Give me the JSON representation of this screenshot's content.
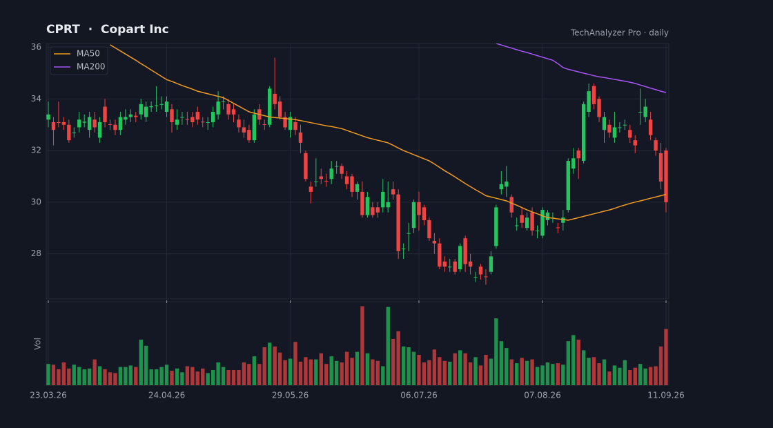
{
  "chart_data": {
    "type": "candlestick",
    "title": "CPRT  ·  Copart Inc",
    "subtitle": "TechAnalyzer Pro · daily",
    "volume_label": "Vol",
    "categories": [
      "23.03.26",
      null,
      null,
      null,
      null,
      null,
      null,
      null,
      null,
      null,
      null,
      null,
      null,
      null,
      null,
      null,
      null,
      null,
      null,
      null,
      null,
      null,
      null,
      "24.04.26",
      null,
      null,
      null,
      null,
      null,
      null,
      null,
      null,
      null,
      null,
      null,
      null,
      null,
      null,
      null,
      null,
      null,
      null,
      null,
      null,
      null,
      null,
      null,
      "29.05.26",
      null,
      null,
      null,
      null,
      null,
      null,
      null,
      null,
      null,
      null,
      null,
      null,
      null,
      null,
      null,
      null,
      null,
      null,
      null,
      null,
      null,
      null,
      null,
      null,
      "06.07.26",
      null,
      null,
      null,
      null,
      null,
      null,
      null,
      null,
      null,
      null,
      null,
      null,
      null,
      null,
      null,
      null,
      null,
      null,
      null,
      null,
      null,
      null,
      null,
      "07.08.26",
      null,
      null,
      null,
      null,
      null,
      null,
      null,
      null,
      null,
      null,
      null,
      null,
      null,
      null,
      null,
      null,
      null,
      null,
      null,
      null,
      null,
      null,
      null,
      "11.09.26"
    ],
    "open": [
      33.2,
      33.1,
      33.1,
      33.1,
      33.0,
      32.68,
      32.9,
      33.08,
      32.8,
      33.2,
      32.5,
      33.7,
      33.02,
      33.0,
      32.8,
      33.2,
      33.3,
      33.35,
      33.4,
      33.3,
      33.68,
      33.72,
      33.78,
      33.5,
      33.6,
      33.0,
      33.28,
      33.22,
      33.3,
      33.5,
      33.12,
      33.08,
      33.1,
      33.4,
      33.88,
      33.8,
      33.6,
      33.2,
      32.9,
      32.8,
      32.4,
      33.6,
      33.02,
      33.0,
      34.2,
      33.9,
      33.3,
      32.8,
      33.1,
      32.7,
      31.9,
      30.6,
      30.78,
      31.0,
      30.82,
      30.9,
      31.38,
      31.4,
      31.0,
      31.0,
      30.4,
      30.4,
      29.5,
      29.8,
      29.8,
      29.8,
      29.8,
      30.5,
      30.3,
      28.18,
      28.78,
      29.0,
      30.0,
      29.8,
      29.3,
      28.5,
      28.4,
      27.7,
      27.48,
      27.7,
      27.4,
      28.6,
      27.7,
      27.08,
      27.5,
      27.12,
      27.3,
      28.3,
      30.5,
      30.6,
      30.2,
      29.08,
      29.5,
      29.0,
      29.6,
      28.88,
      28.7,
      29.3,
      29.38,
      29.02,
      29.2,
      29.7,
      31.3,
      32.0,
      31.6,
      33.5,
      34.5,
      34.0,
      32.8,
      33.0,
      32.5,
      32.88,
      32.98,
      32.8,
      32.4,
      33.48,
      33.3,
      33.2,
      32.4,
      31.9,
      32.0
    ],
    "high": [
      33.9,
      33.3,
      33.9,
      33.3,
      33.2,
      32.9,
      33.5,
      33.4,
      33.5,
      33.5,
      33.3,
      34.0,
      33.2,
      33.2,
      33.5,
      33.6,
      33.6,
      33.5,
      34.0,
      33.9,
      33.9,
      34.5,
      34.1,
      34.1,
      33.8,
      33.6,
      33.5,
      33.5,
      33.5,
      33.7,
      33.3,
      33.3,
      33.7,
      34.3,
      34.1,
      34.0,
      33.8,
      33.4,
      33.2,
      33.0,
      33.6,
      33.8,
      33.2,
      34.5,
      35.6,
      34.1,
      33.5,
      33.5,
      33.3,
      33.0,
      32.0,
      30.8,
      31.7,
      31.3,
      31.1,
      31.6,
      31.6,
      31.5,
      31.2,
      31.1,
      30.8,
      30.8,
      30.4,
      30.0,
      30.0,
      30.9,
      30.8,
      30.8,
      30.5,
      28.4,
      29.2,
      30.1,
      30.4,
      29.9,
      29.4,
      28.8,
      28.6,
      27.9,
      27.8,
      27.8,
      28.4,
      28.7,
      28.0,
      27.3,
      27.6,
      27.4,
      28.1,
      29.9,
      31.2,
      31.4,
      30.3,
      29.4,
      29.8,
      29.6,
      29.8,
      29.1,
      29.8,
      29.7,
      29.6,
      29.2,
      29.7,
      31.7,
      32.1,
      32.1,
      33.9,
      34.6,
      34.6,
      34.1,
      33.5,
      33.2,
      33.5,
      33.1,
      33.2,
      33.0,
      32.6,
      34.4,
      34.0,
      33.5,
      32.5,
      32.3,
      32.1
    ],
    "low": [
      32.9,
      32.2,
      32.9,
      32.8,
      32.3,
      32.5,
      32.7,
      32.9,
      32.5,
      32.7,
      32.3,
      32.9,
      32.8,
      32.6,
      32.6,
      33.0,
      33.1,
      33.1,
      33.2,
      33.1,
      33.5,
      33.5,
      33.6,
      33.3,
      32.7,
      32.8,
      33.0,
      33.0,
      32.9,
      33.0,
      32.9,
      32.8,
      32.9,
      33.2,
      33.6,
      33.2,
      33.1,
      32.7,
      32.5,
      32.3,
      32.3,
      33.0,
      32.8,
      32.9,
      33.6,
      33.2,
      32.8,
      32.5,
      32.6,
      31.9,
      30.8,
      29.95,
      30.6,
      30.7,
      30.6,
      30.7,
      31.1,
      30.9,
      30.5,
      30.2,
      30.1,
      29.4,
      29.4,
      29.4,
      29.4,
      29.6,
      29.6,
      30.1,
      27.8,
      27.8,
      28.1,
      28.8,
      28.9,
      29.1,
      28.5,
      28.0,
      27.4,
      27.3,
      27.3,
      27.2,
      27.3,
      27.3,
      27.2,
      26.9,
      27.0,
      26.8,
      27.2,
      28.2,
      30.3,
      30.2,
      29.4,
      28.9,
      29.0,
      28.9,
      28.7,
      28.6,
      28.6,
      29.1,
      29.2,
      28.8,
      28.9,
      29.6,
      31.1,
      30.9,
      31.5,
      33.3,
      33.6,
      33.1,
      32.3,
      32.5,
      32.3,
      32.7,
      32.8,
      32.3,
      31.9,
      33.0,
      33.1,
      32.4,
      31.8,
      30.5,
      29.6
    ],
    "close": [
      33.4,
      32.8,
      33.08,
      33.0,
      32.4,
      32.7,
      33.2,
      33.12,
      33.3,
      32.9,
      33.1,
      33.1,
      33.0,
      32.8,
      33.3,
      33.3,
      33.4,
      33.3,
      33.8,
      33.7,
      33.72,
      33.75,
      33.8,
      33.9,
      33.1,
      33.2,
      33.3,
      33.2,
      33.1,
      33.2,
      33.1,
      33.1,
      33.5,
      33.9,
      33.9,
      33.4,
      33.4,
      32.9,
      32.7,
      32.4,
      33.4,
      33.2,
      33.0,
      34.4,
      33.8,
      33.3,
      32.9,
      33.3,
      32.8,
      32.3,
      30.9,
      30.4,
      30.8,
      30.9,
      30.8,
      31.3,
      31.4,
      31.1,
      30.7,
      30.4,
      30.7,
      29.5,
      30.2,
      29.5,
      29.6,
      30.4,
      30.0,
      30.3,
      28.1,
      28.2,
      28.8,
      30.0,
      29.5,
      29.3,
      28.6,
      28.4,
      27.5,
      27.5,
      27.5,
      27.3,
      28.3,
      27.6,
      27.5,
      27.1,
      27.2,
      27.1,
      27.9,
      29.8,
      30.7,
      30.8,
      29.6,
      29.1,
      29.2,
      29.4,
      28.9,
      28.9,
      29.7,
      29.6,
      29.4,
      29.0,
      29.4,
      31.6,
      31.7,
      31.7,
      33.8,
      34.3,
      33.8,
      33.3,
      33.3,
      32.7,
      32.9,
      32.9,
      33.0,
      32.5,
      32.2,
      33.5,
      33.7,
      32.6,
      32.0,
      30.8,
      30.0
    ],
    "volume": [
      28,
      27,
      21,
      30,
      22,
      27,
      24,
      21,
      22,
      34,
      25,
      21,
      17,
      16,
      24,
      24,
      26,
      24,
      60,
      52,
      21,
      21,
      24,
      27,
      19,
      22,
      17,
      25,
      24,
      18,
      22,
      16,
      20,
      30,
      24,
      20,
      20,
      20,
      30,
      28,
      38,
      28,
      50,
      56,
      51,
      43,
      33,
      35,
      57,
      31,
      37,
      34,
      34,
      42,
      28,
      38,
      32,
      30,
      44,
      36,
      44,
      104,
      42,
      34,
      32,
      25,
      103,
      61,
      71,
      51,
      50,
      44,
      40,
      30,
      33,
      47,
      37,
      32,
      31,
      42,
      46,
      42,
      30,
      37,
      26,
      40,
      35,
      88,
      58,
      49,
      34,
      29,
      36,
      32,
      34,
      24,
      26,
      30,
      28,
      29,
      27,
      58,
      66,
      60,
      46,
      36,
      37,
      29,
      34,
      18,
      26,
      23,
      33,
      20,
      23,
      28,
      22,
      24,
      25,
      51,
      74
    ],
    "series": [
      {
        "name": "MA50",
        "color": "#f29b1c",
        "values": [
          null,
          null,
          null,
          null,
          null,
          null,
          null,
          null,
          null,
          null,
          null,
          null,
          36.1,
          35.98,
          35.86,
          35.74,
          35.62,
          35.5,
          35.37,
          35.25,
          35.12,
          35.0,
          34.87,
          34.75,
          34.68,
          34.6,
          34.52,
          34.45,
          34.38,
          34.3,
          34.25,
          34.2,
          34.15,
          34.1,
          34.05,
          33.94,
          33.83,
          33.72,
          33.61,
          33.5,
          33.45,
          33.4,
          33.35,
          33.3,
          33.28,
          33.26,
          33.24,
          33.22,
          33.2,
          33.16,
          33.12,
          33.08,
          33.04,
          33.0,
          32.96,
          32.93,
          32.89,
          32.85,
          32.78,
          32.71,
          32.64,
          32.57,
          32.5,
          32.45,
          32.4,
          32.35,
          32.3,
          32.2,
          32.1,
          32.0,
          31.92,
          31.84,
          31.76,
          31.68,
          31.6,
          31.48,
          31.35,
          31.22,
          31.1,
          30.98,
          30.85,
          30.72,
          30.6,
          30.48,
          30.37,
          30.25,
          30.2,
          30.15,
          30.1,
          30.05,
          29.96,
          29.88,
          29.79,
          29.7,
          29.62,
          29.55,
          29.47,
          29.4,
          29.38,
          29.35,
          29.33,
          29.3,
          29.35,
          29.4,
          29.45,
          29.5,
          29.55,
          29.6,
          29.65,
          29.7,
          29.76,
          29.83,
          29.89,
          29.95,
          30.0,
          30.05,
          30.1,
          30.15,
          30.2,
          30.25,
          30.3
        ]
      },
      {
        "name": "MA200",
        "color": "#a855f7",
        "values": [
          null,
          null,
          null,
          null,
          null,
          null,
          null,
          null,
          null,
          null,
          null,
          null,
          null,
          null,
          null,
          null,
          null,
          null,
          null,
          null,
          null,
          null,
          null,
          null,
          null,
          null,
          null,
          null,
          null,
          null,
          null,
          null,
          null,
          null,
          null,
          null,
          null,
          null,
          null,
          null,
          null,
          null,
          null,
          null,
          null,
          null,
          null,
          null,
          null,
          null,
          null,
          null,
          null,
          null,
          null,
          null,
          null,
          null,
          null,
          null,
          null,
          null,
          null,
          null,
          null,
          null,
          null,
          null,
          null,
          null,
          null,
          null,
          null,
          null,
          null,
          null,
          null,
          null,
          null,
          null,
          null,
          null,
          null,
          null,
          null,
          null,
          null,
          36.15,
          36.09,
          36.03,
          35.97,
          35.91,
          35.85,
          35.8,
          35.74,
          35.68,
          35.62,
          35.56,
          35.5,
          35.37,
          35.22,
          35.15,
          35.1,
          35.05,
          35.0,
          34.95,
          34.9,
          34.86,
          34.83,
          34.79,
          34.76,
          34.72,
          34.69,
          34.65,
          34.6,
          34.54,
          34.48,
          34.42,
          34.36,
          34.3,
          34.25
        ]
      }
    ],
    "up_color": "#22c55e",
    "down_color": "#ef4444",
    "ylim": [
      26.25,
      36.15
    ],
    "yticks": [
      28,
      30,
      32,
      34,
      36
    ],
    "vlim": [
      0,
      110
    ],
    "grid": true,
    "legend": "upper left"
  }
}
